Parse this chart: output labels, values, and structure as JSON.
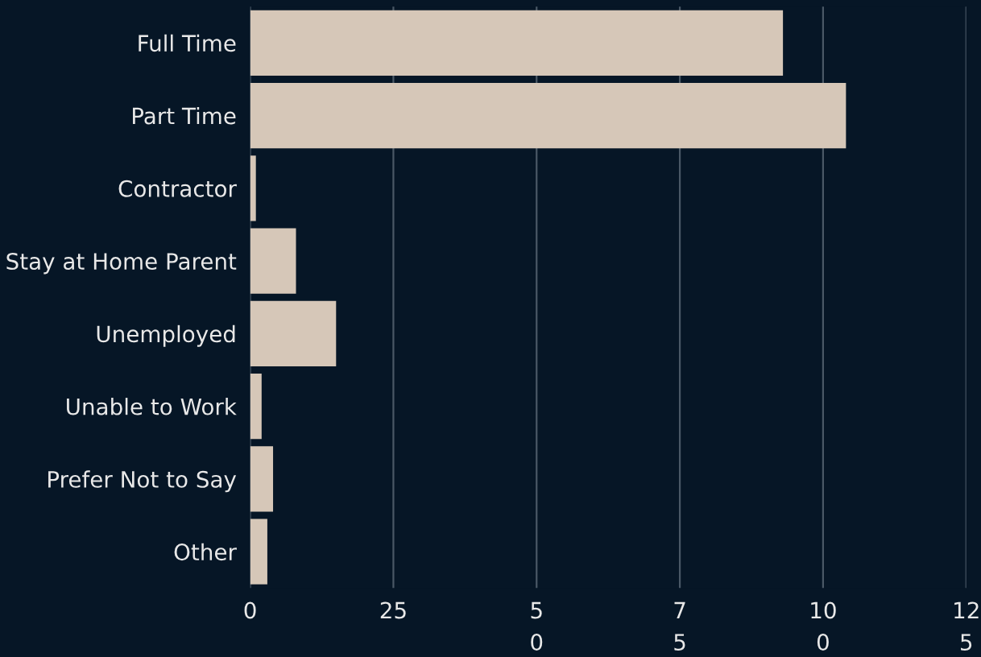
{
  "chart_data": {
    "type": "bar",
    "orientation": "horizontal",
    "categories": [
      "Full Time",
      "Part Time",
      "Contractor",
      "Stay at Home Parent",
      "Unemployed",
      "Unable to Work",
      "Prefer Not to Say",
      "Other"
    ],
    "values": [
      93,
      104,
      1,
      8,
      15,
      2,
      4,
      3
    ],
    "color": "#d6c7b8",
    "xlim": [
      0,
      125
    ],
    "xticks": [
      0,
      25,
      {
        "value": 50,
        "label": "5\n0"
      },
      {
        "value": 75,
        "label": "7\n5"
      },
      {
        "value": 100,
        "label": "10\n0"
      },
      {
        "value": 125,
        "label": "12\n5"
      }
    ],
    "grid": "x"
  }
}
